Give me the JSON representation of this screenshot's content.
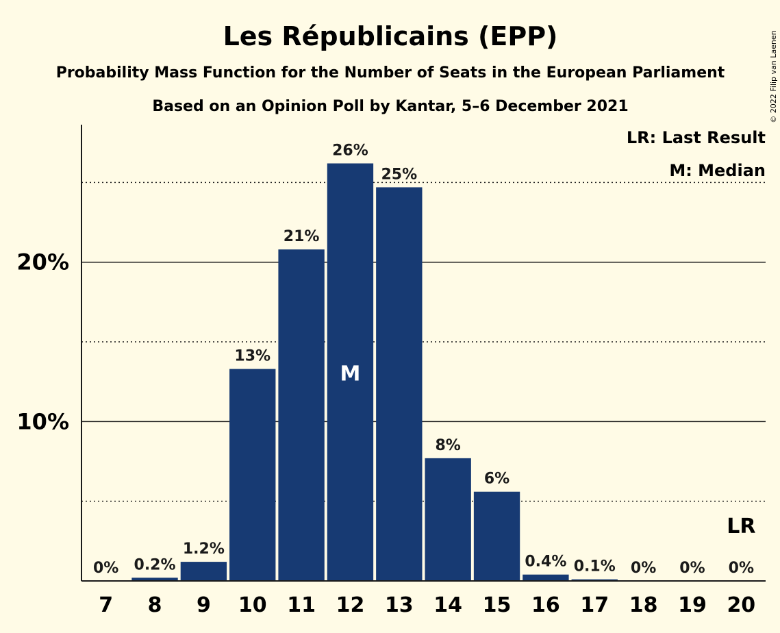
{
  "chart_data": {
    "type": "bar",
    "title": "Les Républicains (EPP)",
    "subtitle": "Probability Mass Function for the Number of Seats in the European Parliament",
    "subtitle2": "Based on an Opinion Poll by Kantar, 5–6 December 2021",
    "copyright": "© 2022 Filip van Laenen",
    "categories": [
      "7",
      "8",
      "9",
      "10",
      "11",
      "12",
      "13",
      "14",
      "15",
      "16",
      "17",
      "18",
      "19",
      "20"
    ],
    "values": [
      0,
      0.2,
      1.2,
      13.3,
      20.8,
      26.2,
      24.7,
      7.7,
      5.6,
      0.4,
      0.1,
      0,
      0,
      0
    ],
    "value_labels": [
      "0%",
      "0.2%",
      "1.2%",
      "13%",
      "21%",
      "26%",
      "25%",
      "8%",
      "6%",
      "0.4%",
      "0.1%",
      "0%",
      "0%",
      "0%"
    ],
    "ylim": [
      0,
      28.5
    ],
    "y_ticks": [
      {
        "value": 10,
        "label": "10%"
      },
      {
        "value": 20,
        "label": "20%"
      }
    ],
    "minor_gridlines": [
      5,
      15,
      25
    ],
    "median_category": "12",
    "median_marker": "M",
    "last_result_category": "20",
    "last_result_marker": "LR",
    "legend": [
      "LR: Last Result",
      "M: Median"
    ],
    "legend_position": "top-right",
    "bar_color": "#173a73",
    "background_color": "#fffbe6",
    "axis_color": "#1a1a1a"
  }
}
